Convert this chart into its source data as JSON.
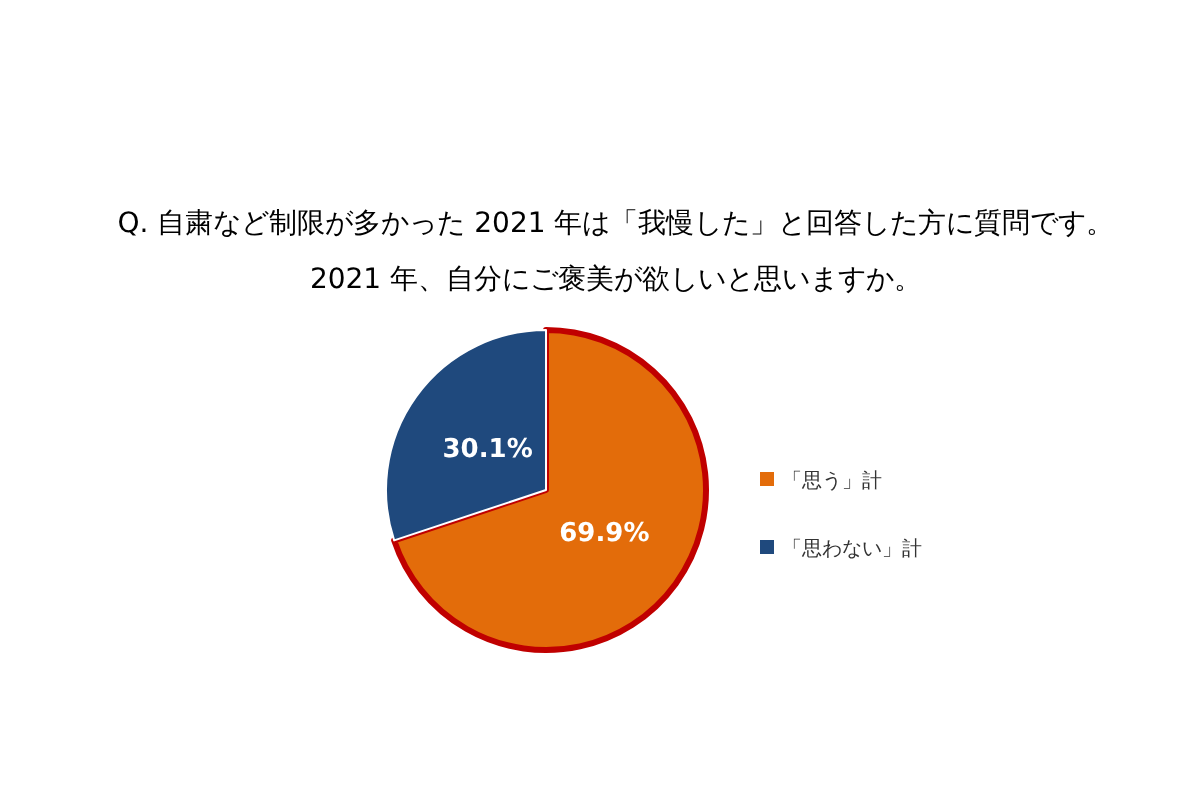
{
  "chart_data": {
    "type": "pie",
    "title": "Q. 自粛など制限が多かった 2021 年は「我慢した」と回答した方に質問です。\n2021 年、自分にご褒美が欲しいと思いますか。",
    "categories": [
      "「思う」計",
      "「思わない」計"
    ],
    "values": [
      69.9,
      30.1
    ],
    "colors": [
      "#e36c0a",
      "#1f497d"
    ],
    "value_labels": [
      "69.9%",
      "30.1%"
    ],
    "legend": "right"
  }
}
